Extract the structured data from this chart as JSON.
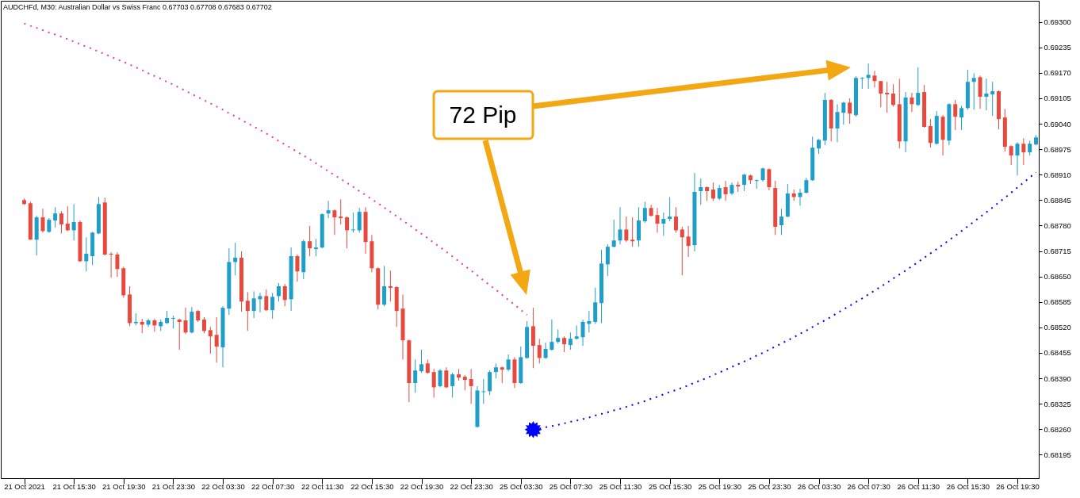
{
  "chart_data": {
    "type": "candlestick",
    "title": "AUDCHFd, M30: Australian Dollar vs Swiss Franc 0.67703 0.67708 0.67683 0.67702",
    "categories": [
      "21 Oct 2021",
      null,
      null,
      null,
      null,
      null,
      null,
      null,
      "21 Oct 15:30",
      null,
      null,
      null,
      null,
      null,
      null,
      null,
      "21 Oct 19:30",
      null,
      null,
      null,
      null,
      null,
      null,
      null,
      "21 Oct 23:30",
      null,
      null,
      null,
      null,
      null,
      null,
      null,
      "22 Oct 03:30",
      null,
      null,
      null,
      null,
      null,
      null,
      null,
      "22 Oct 07:30",
      null,
      null,
      null,
      null,
      null,
      null,
      null,
      "22 Oct 11:30",
      null,
      null,
      null,
      null,
      null,
      null,
      null,
      "22 Oct 15:30",
      null,
      null,
      null,
      null,
      null,
      null,
      null,
      "22 Oct 19:30",
      null,
      null,
      null,
      null,
      null,
      null,
      null,
      "22 Oct 23:30",
      null,
      null,
      null,
      null,
      null,
      null,
      null,
      "25 Oct 03:30",
      null,
      null,
      null,
      null,
      null,
      null,
      null,
      "25 Oct 07:30",
      null,
      null,
      null,
      null,
      null,
      null,
      null,
      "25 Oct 11:30",
      null,
      null,
      null,
      null,
      null,
      null,
      null,
      "25 Oct 15:30",
      null,
      null,
      null,
      null,
      null,
      null,
      null,
      "25 Oct 19:30",
      null,
      null,
      null,
      null,
      null,
      null,
      null,
      "25 Oct 23:30",
      null,
      null,
      null,
      null,
      null,
      null,
      null,
      "26 Oct 03:30",
      null,
      null,
      null,
      null,
      null,
      null,
      null,
      "26 Oct 07:30",
      null,
      null,
      null,
      null,
      null,
      null,
      null,
      "26 Oct 11:30",
      null,
      null,
      null,
      null,
      null,
      null,
      null,
      "26 Oct 15:30",
      null,
      null,
      null,
      null,
      null,
      null,
      null,
      "26 Oct 19:30",
      null,
      null,
      null
    ],
    "ohlc": [
      [
        0.68845,
        0.68849,
        0.68833,
        0.68835
      ],
      [
        0.68837,
        0.68841,
        0.68744,
        0.68744
      ],
      [
        0.68744,
        0.68805,
        0.68704,
        0.68801
      ],
      [
        0.68801,
        0.68823,
        0.68762,
        0.68766
      ],
      [
        0.68764,
        0.68799,
        0.68762,
        0.68795
      ],
      [
        0.68793,
        0.68827,
        0.68775,
        0.68811
      ],
      [
        0.68811,
        0.68817,
        0.6876,
        0.68783
      ],
      [
        0.68785,
        0.68829,
        0.68766,
        0.68768
      ],
      [
        0.68768,
        0.68835,
        0.68742,
        0.68789
      ],
      [
        0.68789,
        0.68793,
        0.68687,
        0.68689
      ],
      [
        0.68689,
        0.6875,
        0.68663,
        0.68708
      ],
      [
        0.68702,
        0.68764,
        0.68679,
        0.68762
      ],
      [
        0.6876,
        0.68853,
        0.68758,
        0.68835
      ],
      [
        0.68839,
        0.68851,
        0.68704,
        0.68706
      ],
      [
        0.68708,
        0.68712,
        0.68647,
        0.68706
      ],
      [
        0.68706,
        0.68712,
        0.68649,
        0.68669
      ],
      [
        0.68671,
        0.68675,
        0.68596,
        0.68602
      ],
      [
        0.68604,
        0.68625,
        0.68523,
        0.68531
      ],
      [
        0.68531,
        0.68556,
        0.68525,
        0.68534
      ],
      [
        0.68534,
        0.68542,
        0.68505,
        0.68527
      ],
      [
        0.68527,
        0.68542,
        0.68521,
        0.68538
      ],
      [
        0.68538,
        0.68542,
        0.68509,
        0.68525
      ],
      [
        0.68523,
        0.6854,
        0.68511,
        0.68534
      ],
      [
        0.68531,
        0.68562,
        0.68529,
        0.68544
      ],
      [
        0.68542,
        0.6855,
        0.68517,
        0.68544
      ],
      [
        0.6854,
        0.68542,
        0.68463,
        0.68534
      ],
      [
        0.68538,
        0.6857,
        0.68503,
        0.68507
      ],
      [
        0.68507,
        0.68572,
        0.68505,
        0.6856
      ],
      [
        0.68562,
        0.68564,
        0.68534,
        0.68538
      ],
      [
        0.6854,
        0.68546,
        0.68505,
        0.68511
      ],
      [
        0.68513,
        0.68521,
        0.68453,
        0.68497
      ],
      [
        0.68501,
        0.68546,
        0.6843,
        0.68471
      ],
      [
        0.68469,
        0.68574,
        0.68418,
        0.6857
      ],
      [
        0.68568,
        0.68722,
        0.68552,
        0.68687
      ],
      [
        0.68687,
        0.68736,
        0.68653,
        0.68698
      ],
      [
        0.68698,
        0.68714,
        0.6856,
        0.68586
      ],
      [
        0.68588,
        0.6861,
        0.68511,
        0.68562
      ],
      [
        0.68562,
        0.68612,
        0.68544,
        0.68594
      ],
      [
        0.68592,
        0.68608,
        0.68558,
        0.686
      ],
      [
        0.686,
        0.68617,
        0.68562,
        0.68564
      ],
      [
        0.68564,
        0.68608,
        0.68542,
        0.68598
      ],
      [
        0.686,
        0.68633,
        0.68586,
        0.68625
      ],
      [
        0.68625,
        0.68631,
        0.68574,
        0.6859
      ],
      [
        0.68592,
        0.68724,
        0.68562,
        0.68702
      ],
      [
        0.68702,
        0.68706,
        0.68637,
        0.68663
      ],
      [
        0.68661,
        0.68744,
        0.68643,
        0.6874
      ],
      [
        0.6874,
        0.68779,
        0.68702,
        0.68722
      ],
      [
        0.6872,
        0.68746,
        0.68702,
        0.68724
      ],
      [
        0.68724,
        0.68811,
        0.68722,
        0.68809
      ],
      [
        0.68811,
        0.68843,
        0.68799,
        0.68819
      ],
      [
        0.68819,
        0.68821,
        0.68756,
        0.68801
      ],
      [
        0.68803,
        0.68847,
        0.68783,
        0.68799
      ],
      [
        0.68801,
        0.68803,
        0.68722,
        0.68768
      ],
      [
        0.68768,
        0.68813,
        0.68762,
        0.6877
      ],
      [
        0.68768,
        0.68825,
        0.68762,
        0.68815
      ],
      [
        0.68815,
        0.68827,
        0.68708,
        0.68738
      ],
      [
        0.6874,
        0.68756,
        0.68661,
        0.68671
      ],
      [
        0.68671,
        0.68673,
        0.68566,
        0.68578
      ],
      [
        0.68578,
        0.68677,
        0.68574,
        0.68625
      ],
      [
        0.68625,
        0.68665,
        0.68586,
        0.68621
      ],
      [
        0.68623,
        0.68625,
        0.68521,
        0.68562
      ],
      [
        0.68568,
        0.68604,
        0.68438,
        0.68487
      ],
      [
        0.68487,
        0.68489,
        0.68329,
        0.68378
      ],
      [
        0.68378,
        0.68438,
        0.68353,
        0.6841
      ],
      [
        0.68408,
        0.68463,
        0.68404,
        0.68426
      ],
      [
        0.68428,
        0.68438,
        0.68402,
        0.68404
      ],
      [
        0.68406,
        0.68414,
        0.68341,
        0.68367
      ],
      [
        0.6837,
        0.68414,
        0.68367,
        0.6841
      ],
      [
        0.6841,
        0.68418,
        0.68365,
        0.68367
      ],
      [
        0.6837,
        0.68404,
        0.68341,
        0.684
      ],
      [
        0.684,
        0.68414,
        0.68384,
        0.68392
      ],
      [
        0.68394,
        0.68398,
        0.68359,
        0.68386
      ],
      [
        0.68388,
        0.68414,
        0.68325,
        0.6837
      ],
      [
        0.68266,
        0.6837,
        0.68264,
        0.68359
      ],
      [
        0.68355,
        0.68388,
        0.68325,
        0.68357
      ],
      [
        0.68357,
        0.6841,
        0.68347,
        0.68406
      ],
      [
        0.68406,
        0.68428,
        0.6839,
        0.68418
      ],
      [
        0.68418,
        0.6842,
        0.68378,
        0.68412
      ],
      [
        0.68412,
        0.68451,
        0.68408,
        0.68438
      ],
      [
        0.68438,
        0.68444,
        0.68365,
        0.68378
      ],
      [
        0.68378,
        0.68471,
        0.68376,
        0.68444
      ],
      [
        0.68442,
        0.68536,
        0.6844,
        0.68521
      ],
      [
        0.68523,
        0.6857,
        0.68416,
        0.68473
      ],
      [
        0.68475,
        0.68491,
        0.68428,
        0.68442
      ],
      [
        0.68442,
        0.68481,
        0.6844,
        0.68465
      ],
      [
        0.68463,
        0.6854,
        0.68461,
        0.68483
      ],
      [
        0.68483,
        0.68515,
        0.68479,
        0.68493
      ],
      [
        0.68493,
        0.68497,
        0.68457,
        0.68477
      ],
      [
        0.68475,
        0.68507,
        0.68463,
        0.68491
      ],
      [
        0.68491,
        0.68525,
        0.68489,
        0.68497
      ],
      [
        0.68495,
        0.6854,
        0.68473,
        0.68534
      ],
      [
        0.68529,
        0.68562,
        0.68507,
        0.68536
      ],
      [
        0.68534,
        0.68621,
        0.68529,
        0.68584
      ],
      [
        0.68582,
        0.68718,
        0.68531,
        0.68683
      ],
      [
        0.68681,
        0.68732,
        0.68651,
        0.68726
      ],
      [
        0.68726,
        0.68795,
        0.68724,
        0.68742
      ],
      [
        0.68742,
        0.68827,
        0.68732,
        0.6877
      ],
      [
        0.6877,
        0.68803,
        0.68738,
        0.68742
      ],
      [
        0.68744,
        0.68801,
        0.68726,
        0.6874
      ],
      [
        0.68742,
        0.68827,
        0.68726,
        0.68793
      ],
      [
        0.68791,
        0.68841,
        0.68787,
        0.68825
      ],
      [
        0.68825,
        0.68833,
        0.68803,
        0.68805
      ],
      [
        0.68807,
        0.68825,
        0.68762,
        0.68785
      ],
      [
        0.68785,
        0.68813,
        0.68754,
        0.68797
      ],
      [
        0.68797,
        0.68853,
        0.68791,
        0.68803
      ],
      [
        0.68803,
        0.68827,
        0.68762,
        0.68768
      ],
      [
        0.6877,
        0.68777,
        0.68653,
        0.6875
      ],
      [
        0.68752,
        0.68779,
        0.687,
        0.68728
      ],
      [
        0.6873,
        0.68914,
        0.68714,
        0.68866
      ],
      [
        0.68868,
        0.689,
        0.68833,
        0.68878
      ],
      [
        0.68878,
        0.6888,
        0.68843,
        0.68868
      ],
      [
        0.68872,
        0.6889,
        0.68843,
        0.68849
      ],
      [
        0.68849,
        0.68884,
        0.68845,
        0.68876
      ],
      [
        0.68878,
        0.68894,
        0.68843,
        0.6886
      ],
      [
        0.68862,
        0.6889,
        0.68858,
        0.68884
      ],
      [
        0.68884,
        0.68892,
        0.68866,
        0.6888
      ],
      [
        0.68884,
        0.68912,
        0.68868,
        0.6891
      ],
      [
        0.68908,
        0.6891,
        0.68886,
        0.68896
      ],
      [
        0.68894,
        0.68898,
        0.68874,
        0.68896
      ],
      [
        0.68896,
        0.68928,
        0.68892,
        0.68926
      ],
      [
        0.68924,
        0.68926,
        0.6887,
        0.68878
      ],
      [
        0.68876,
        0.68894,
        0.68756,
        0.68777
      ],
      [
        0.68781,
        0.68823,
        0.68756,
        0.68803
      ],
      [
        0.68803,
        0.68886,
        0.68801,
        0.68862
      ],
      [
        0.68862,
        0.68872,
        0.68843,
        0.68853
      ],
      [
        0.68853,
        0.68874,
        0.68831,
        0.68864
      ],
      [
        0.68864,
        0.68902,
        0.68862,
        0.68896
      ],
      [
        0.68896,
        0.69007,
        0.68894,
        0.68979
      ],
      [
        0.68977,
        0.69001,
        0.68963,
        0.68999
      ],
      [
        0.68997,
        0.69119,
        0.68985,
        0.69101
      ],
      [
        0.69101,
        0.69103,
        0.68995,
        0.69028
      ],
      [
        0.69028,
        0.6909,
        0.68993,
        0.6907
      ],
      [
        0.69068,
        0.69096,
        0.69038,
        0.69094
      ],
      [
        0.69094,
        0.69105,
        0.6904,
        0.69066
      ],
      [
        0.69062,
        0.69161,
        0.69058,
        0.69157
      ],
      [
        0.69155,
        0.69159,
        0.69129,
        0.69157
      ],
      [
        0.69157,
        0.69194,
        0.69129,
        0.69165
      ],
      [
        0.69163,
        0.69175,
        0.69133,
        0.69149
      ],
      [
        0.69149,
        0.69149,
        0.69082,
        0.69117
      ],
      [
        0.69119,
        0.69147,
        0.69068,
        0.69115
      ],
      [
        0.69117,
        0.69141,
        0.69084,
        0.69088
      ],
      [
        0.6909,
        0.69155,
        0.68977,
        0.68995
      ],
      [
        0.68995,
        0.69121,
        0.68967,
        0.69107
      ],
      [
        0.69107,
        0.69119,
        0.6907,
        0.6909
      ],
      [
        0.69088,
        0.69184,
        0.69086,
        0.69119
      ],
      [
        0.69121,
        0.69139,
        0.6903,
        0.69032
      ],
      [
        0.69034,
        0.69052,
        0.68979,
        0.68991
      ],
      [
        0.68989,
        0.69072,
        0.68987,
        0.6906
      ],
      [
        0.69058,
        0.69062,
        0.68959,
        0.68999
      ],
      [
        0.68997,
        0.69092,
        0.68985,
        0.6909
      ],
      [
        0.6909,
        0.69101,
        0.69024,
        0.69058
      ],
      [
        0.69056,
        0.69086,
        0.69024,
        0.6908
      ],
      [
        0.6908,
        0.69178,
        0.69076,
        0.69147
      ],
      [
        0.69147,
        0.69169,
        0.69076,
        0.69157
      ],
      [
        0.69159,
        0.69163,
        0.69078,
        0.69109
      ],
      [
        0.69109,
        0.69155,
        0.69074,
        0.69117
      ],
      [
        0.69115,
        0.69147,
        0.6906,
        0.69123
      ],
      [
        0.69123,
        0.69125,
        0.69026,
        0.69052
      ],
      [
        0.69056,
        0.69078,
        0.68969,
        0.68981
      ],
      [
        0.68983,
        0.68985,
        0.68935,
        0.68959
      ],
      [
        0.68959,
        0.68993,
        0.68908,
        0.68989
      ],
      [
        0.68989,
        0.69003,
        0.68935,
        0.68967
      ],
      [
        0.68967,
        0.68997,
        0.68959,
        0.68989
      ],
      [
        0.68987,
        0.69011,
        0.68985,
        0.69005
      ]
    ],
    "colors": [
      "#e8493e",
      "#e8493e",
      "#1f9ec9",
      "#e8493e",
      "#1f9ec9",
      "#1f9ec9",
      "#e8493e",
      "#e8493e",
      "#1f9ec9",
      "#e8493e",
      "#1f9ec9",
      "#1f9ec9",
      "#1f9ec9",
      "#e8493e",
      "#e8493e",
      "#e8493e",
      "#e8493e",
      "#e8493e",
      "#1f9ec9",
      "#e8493e",
      "#1f9ec9",
      "#e8493e",
      "#1f9ec9",
      "#1f9ec9",
      "#1f9ec9",
      "#e8493e",
      "#e8493e",
      "#1f9ec9",
      "#e8493e",
      "#e8493e",
      "#e8493e",
      "#e8493e",
      "#1f9ec9",
      "#1f9ec9",
      "#1f9ec9",
      "#e8493e",
      "#e8493e",
      "#1f9ec9",
      "#1f9ec9",
      "#e8493e",
      "#1f9ec9",
      "#1f9ec9",
      "#e8493e",
      "#1f9ec9",
      "#e8493e",
      "#1f9ec9",
      "#e8493e",
      "#1f9ec9",
      "#1f9ec9",
      "#1f9ec9",
      "#e8493e",
      "#e8493e",
      "#e8493e",
      "#1f9ec9",
      "#1f9ec9",
      "#e8493e",
      "#e8493e",
      "#e8493e",
      "#1f9ec9",
      "#e8493e",
      "#e8493e",
      "#e8493e",
      "#e8493e",
      "#1f9ec9",
      "#1f9ec9",
      "#e8493e",
      "#e8493e",
      "#1f9ec9",
      "#e8493e",
      "#1f9ec9",
      "#e8493e",
      "#e8493e",
      "#e8493e",
      "#1f9ec9",
      "#1f9ec9",
      "#1f9ec9",
      "#1f9ec9",
      "#e8493e",
      "#1f9ec9",
      "#e8493e",
      "#1f9ec9",
      "#1f9ec9",
      "#e8493e",
      "#e8493e",
      "#1f9ec9",
      "#1f9ec9",
      "#1f9ec9",
      "#e8493e",
      "#1f9ec9",
      "#1f9ec9",
      "#1f9ec9",
      "#1f9ec9",
      "#1f9ec9",
      "#1f9ec9",
      "#1f9ec9",
      "#1f9ec9",
      "#1f9ec9",
      "#e8493e",
      "#e8493e",
      "#1f9ec9",
      "#1f9ec9",
      "#e8493e",
      "#e8493e",
      "#1f9ec9",
      "#1f9ec9",
      "#e8493e",
      "#e8493e",
      "#e8493e",
      "#1f9ec9",
      "#1f9ec9",
      "#e8493e",
      "#e8493e",
      "#1f9ec9",
      "#e8493e",
      "#1f9ec9",
      "#e8493e",
      "#1f9ec9",
      "#e8493e",
      "#1f9ec9",
      "#1f9ec9",
      "#e8493e",
      "#e8493e",
      "#1f9ec9",
      "#1f9ec9",
      "#e8493e",
      "#1f9ec9",
      "#1f9ec9",
      "#1f9ec9",
      "#1f9ec9",
      "#1f9ec9",
      "#e8493e",
      "#1f9ec9",
      "#1f9ec9",
      "#e8493e",
      "#1f9ec9",
      "#1f9ec9",
      "#1f9ec9",
      "#e8493e",
      "#e8493e",
      "#e8493e",
      "#e8493e",
      "#e8493e",
      "#1f9ec9",
      "#e8493e",
      "#1f9ec9",
      "#e8493e",
      "#e8493e",
      "#1f9ec9",
      "#e8493e",
      "#1f9ec9",
      "#e8493e",
      "#1f9ec9",
      "#1f9ec9",
      "#1f9ec9",
      "#e8493e",
      "#1f9ec9",
      "#1f9ec9",
      "#e8493e",
      "#e8493e",
      "#e8493e",
      "#1f9ec9",
      "#e8493e",
      "#1f9ec9",
      "#1f9ec9"
    ],
    "series": [
      {
        "type": "line",
        "color": "#e8418f",
        "line_style": "dotted",
        "values": [
          0.69296,
          0.6929,
          0.69285,
          0.69279,
          0.69273,
          0.69268,
          0.69262,
          0.69256,
          0.6925,
          0.69243,
          0.69237,
          0.69231,
          0.69224,
          0.69218,
          0.69211,
          0.69204,
          0.69198,
          0.69191,
          0.69184,
          0.69177,
          0.69169,
          0.69162,
          0.69155,
          0.69147,
          0.6914,
          0.69132,
          0.69124,
          0.69116,
          0.69108,
          0.691,
          0.69092,
          0.69084,
          0.69076,
          0.69067,
          0.69059,
          0.6905,
          0.69041,
          0.69033,
          0.69024,
          0.69015,
          0.69006,
          0.68996,
          0.68987,
          0.68978,
          0.68968,
          0.68959,
          0.68949,
          0.68939,
          0.68929,
          0.68919,
          0.68909,
          0.68899,
          0.68889,
          0.68879,
          0.68868,
          0.68858,
          0.68847,
          0.68837,
          0.68826,
          0.68815,
          0.68804,
          0.68793,
          0.68782,
          0.6877,
          0.68759,
          0.68748,
          0.68736,
          0.68725,
          0.68713,
          0.68701,
          0.68689,
          0.68677,
          0.68665,
          0.68653,
          0.6864,
          0.68628,
          0.68616,
          0.68603,
          0.6859,
          0.68578,
          0.68565,
          0.68552,
          null,
          null,
          null,
          null,
          null,
          null,
          null,
          null,
          null,
          null,
          null,
          null,
          null,
          null,
          null,
          null,
          null,
          null,
          null,
          null,
          null,
          null,
          null,
          null,
          null,
          null,
          null,
          null,
          null,
          null,
          null,
          null,
          null,
          null,
          null,
          null,
          null,
          null,
          null,
          null,
          null,
          null,
          null,
          null,
          null,
          null,
          null,
          null,
          null,
          null,
          null,
          null,
          null,
          null,
          null,
          null,
          null,
          null,
          null,
          null,
          null,
          null,
          null,
          null,
          null,
          null,
          null,
          null,
          null,
          null,
          null,
          null,
          null,
          null,
          null,
          null,
          null,
          null,
          null,
          null,
          null,
          null
        ]
      },
      {
        "type": "line",
        "color": "#0000ff",
        "line_style": "dotted",
        "values": [
          null,
          null,
          null,
          null,
          null,
          null,
          null,
          null,
          null,
          null,
          null,
          null,
          null,
          null,
          null,
          null,
          null,
          null,
          null,
          null,
          null,
          null,
          null,
          null,
          null,
          null,
          null,
          null,
          null,
          null,
          null,
          null,
          null,
          null,
          null,
          null,
          null,
          null,
          null,
          null,
          null,
          null,
          null,
          null,
          null,
          null,
          null,
          null,
          null,
          null,
          null,
          null,
          null,
          null,
          null,
          null,
          null,
          null,
          null,
          null,
          null,
          null,
          null,
          null,
          null,
          null,
          null,
          null,
          null,
          null,
          null,
          null,
          null,
          null,
          null,
          null,
          null,
          null,
          null,
          null,
          null,
          null,
          0.68259,
          0.68262,
          0.68265,
          0.68268,
          0.68271,
          0.68275,
          0.68279,
          0.68282,
          0.68286,
          0.6829,
          0.68295,
          0.68299,
          0.68303,
          0.68308,
          0.68312,
          0.68317,
          0.68322,
          0.68327,
          0.68332,
          0.68338,
          0.68343,
          0.68349,
          0.68355,
          0.6836,
          0.68366,
          0.68372,
          0.68379,
          0.68385,
          0.68391,
          0.68398,
          0.68405,
          0.68412,
          0.68419,
          0.68426,
          0.68433,
          0.6844,
          0.68448,
          0.68455,
          0.68463,
          0.68471,
          0.68479,
          0.68487,
          0.68495,
          0.68504,
          0.68512,
          0.68521,
          0.6853,
          0.68538,
          0.68547,
          0.68557,
          0.68566,
          0.68575,
          0.68585,
          0.68594,
          0.68604,
          0.68614,
          0.68624,
          0.68634,
          0.68645,
          0.68655,
          0.68665,
          0.68676,
          0.68687,
          0.68698,
          0.68709,
          0.6872,
          0.68731,
          0.68743,
          0.68754,
          0.68766,
          0.68778,
          0.6879,
          0.68802,
          0.68814,
          0.68826,
          0.68839,
          0.68851,
          0.68864,
          0.68877,
          0.6889,
          0.68903,
          0.68916
        ]
      },
      {
        "type": "scatter",
        "color": "#0000ff",
        "marker": "star",
        "values": [
          null,
          null,
          null,
          null,
          null,
          null,
          null,
          null,
          null,
          null,
          null,
          null,
          null,
          null,
          null,
          null,
          null,
          null,
          null,
          null,
          null,
          null,
          null,
          null,
          null,
          null,
          null,
          null,
          null,
          null,
          null,
          null,
          null,
          null,
          null,
          null,
          null,
          null,
          null,
          null,
          null,
          null,
          null,
          null,
          null,
          null,
          null,
          null,
          null,
          null,
          null,
          null,
          null,
          null,
          null,
          null,
          null,
          null,
          null,
          null,
          null,
          null,
          null,
          null,
          null,
          null,
          null,
          null,
          null,
          null,
          null,
          null,
          null,
          null,
          null,
          null,
          null,
          null,
          null,
          null,
          null,
          null,
          0.68259,
          null,
          null,
          null,
          null,
          null,
          null,
          null,
          null,
          null,
          null,
          null,
          null,
          null,
          null,
          null,
          null,
          null,
          null,
          null,
          null,
          null,
          null,
          null,
          null,
          null,
          null,
          null,
          null,
          null,
          null,
          null,
          null,
          null,
          null,
          null,
          null,
          null,
          null,
          null,
          null,
          null,
          null,
          null,
          null,
          null,
          null,
          null,
          null,
          null,
          null,
          null,
          null,
          null,
          null,
          null,
          null,
          null,
          null,
          null,
          null,
          null,
          null,
          null,
          null,
          null,
          null,
          null,
          null,
          null,
          null,
          null,
          null,
          null,
          null,
          null,
          null,
          null,
          null,
          null,
          null,
          null
        ]
      }
    ],
    "ylim": [
      0.68135,
      0.69354
    ],
    "yticks": [
      0.68195,
      {
        "value": 0.6826,
        "label": "0.68260"
      },
      0.68325,
      {
        "value": 0.6839,
        "label": "0.68390"
      },
      0.68455,
      {
        "value": 0.6852,
        "label": "0.68520"
      },
      0.68585,
      {
        "value": 0.6865,
        "label": "0.68650"
      },
      0.68715,
      {
        "value": 0.6878,
        "label": "0.68780"
      },
      0.68845,
      {
        "value": 0.6891,
        "label": "0.68910"
      },
      0.68975,
      {
        "value": 0.6904,
        "label": "0.69040"
      },
      0.69105,
      {
        "value": 0.6917,
        "label": "0.69170"
      },
      0.69235,
      {
        "value": 0.693,
        "label": "0.69300"
      }
    ],
    "annotations": [
      "72 Pip"
    ]
  }
}
